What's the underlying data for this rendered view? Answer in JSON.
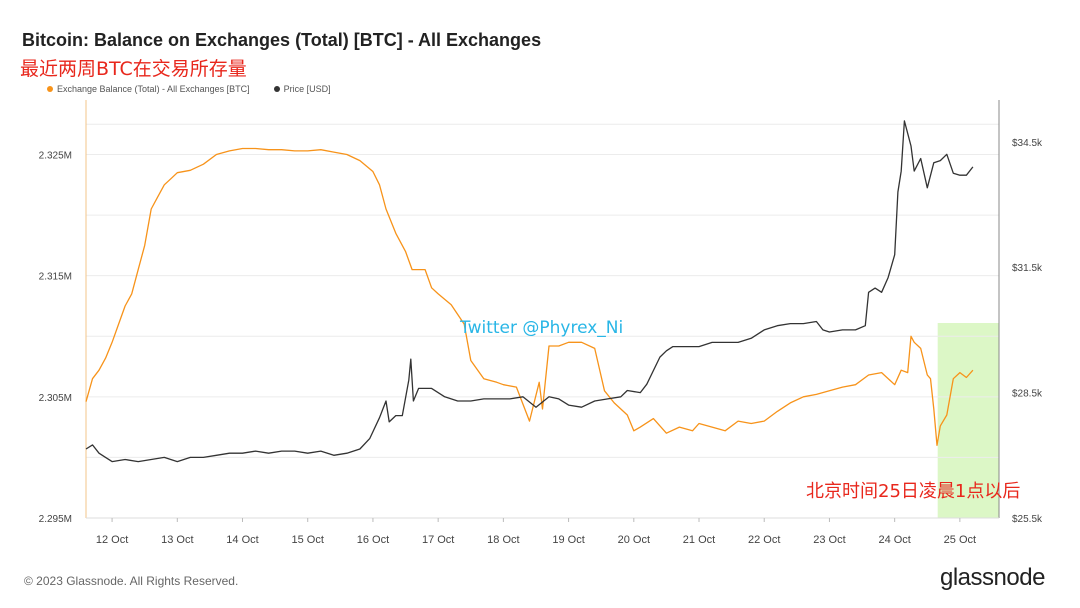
{
  "header": {
    "title": "Bitcoin: Balance on Exchanges (Total) [BTC] - All Exchanges",
    "subtitle": "最近两周BTC在交易所存量"
  },
  "legend": {
    "balance_label": "Exchange Balance (Total) - All Exchanges [BTC]",
    "price_label": "Price [USD]"
  },
  "colors": {
    "balance": "#f7931a",
    "price": "#333333",
    "highlight": "#dcf7c6",
    "annotation": "#e8271c",
    "watermark": "#29b6e6"
  },
  "annotations": {
    "watermark": "Twitter @Phyrex_Ni",
    "note": "北京时间25日凌晨1点以后"
  },
  "footer": {
    "copyright": "© 2023 Glassnode. All Rights Reserved.",
    "brand": "glassnode"
  },
  "chart_data": {
    "type": "line",
    "x_ticks": [
      "12 Oct",
      "13 Oct",
      "14 Oct",
      "15 Oct",
      "16 Oct",
      "17 Oct",
      "18 Oct",
      "19 Oct",
      "20 Oct",
      "21 Oct",
      "22 Oct",
      "23 Oct",
      "24 Oct",
      "25 Oct"
    ],
    "y_left": {
      "ticks": [
        "2.295M",
        "2.305M",
        "2.315M",
        "2.325M"
      ],
      "tick_values": [
        2.295,
        2.305,
        2.315,
        2.325
      ],
      "range": [
        2.295,
        2.3295
      ],
      "unit": "M BTC"
    },
    "y_right": {
      "ticks": [
        "$25.5k",
        "$28.5k",
        "$31.5k",
        "$34.5k"
      ],
      "tick_values": [
        25.5,
        28.5,
        31.5,
        34.5
      ],
      "range": [
        25.5,
        35.5
      ],
      "unit": "k USD"
    },
    "x_range": [
      11.6,
      25.6
    ],
    "highlight_range": [
      24.66,
      25.6
    ],
    "series": [
      {
        "name": "Exchange Balance (Total) - All Exchanges [BTC]",
        "axis": "left",
        "x": [
          11.6,
          11.7,
          11.8,
          11.9,
          12.0,
          12.1,
          12.2,
          12.3,
          12.4,
          12.5,
          12.6,
          12.7,
          12.8,
          12.9,
          13.0,
          13.2,
          13.4,
          13.6,
          13.8,
          14.0,
          14.2,
          14.4,
          14.6,
          14.8,
          15.0,
          15.2,
          15.4,
          15.6,
          15.8,
          16.0,
          16.1,
          16.2,
          16.35,
          16.5,
          16.6,
          16.8,
          16.9,
          17.0,
          17.2,
          17.4,
          17.5,
          17.7,
          17.9,
          18.0,
          18.2,
          18.4,
          18.55,
          18.6,
          18.7,
          18.85,
          19.0,
          19.2,
          19.4,
          19.55,
          19.7,
          19.9,
          20.0,
          20.1,
          20.3,
          20.5,
          20.7,
          20.9,
          21.0,
          21.2,
          21.4,
          21.6,
          21.8,
          22.0,
          22.2,
          22.4,
          22.6,
          22.8,
          23.0,
          23.2,
          23.4,
          23.6,
          23.8,
          24.0,
          24.1,
          24.2,
          24.25,
          24.3,
          24.4,
          24.5,
          24.55,
          24.6,
          24.65,
          24.7,
          24.8,
          24.9,
          25.0,
          25.1,
          25.2
        ],
        "values": [
          2.3046,
          2.3065,
          2.3072,
          2.3082,
          2.3095,
          2.311,
          2.3125,
          2.3135,
          2.3155,
          2.3175,
          2.3205,
          2.3215,
          2.3225,
          2.323,
          2.3235,
          2.3237,
          2.3242,
          2.325,
          2.3253,
          2.3255,
          2.3255,
          2.3254,
          2.3254,
          2.3253,
          2.3253,
          2.3254,
          2.3252,
          2.325,
          2.3245,
          2.3236,
          2.3225,
          2.3205,
          2.3185,
          2.317,
          2.3155,
          2.3155,
          2.314,
          2.3135,
          2.3126,
          2.311,
          2.308,
          2.3065,
          2.3062,
          2.306,
          2.3058,
          2.303,
          2.3062,
          2.304,
          2.3092,
          2.3092,
          2.3095,
          2.3095,
          2.309,
          2.3055,
          2.3045,
          2.3035,
          2.3022,
          2.3025,
          2.3032,
          2.302,
          2.3025,
          2.3022,
          2.3028,
          2.3025,
          2.3022,
          2.303,
          2.3028,
          2.303,
          2.3038,
          2.3045,
          2.305,
          2.3052,
          2.3055,
          2.3058,
          2.306,
          2.3068,
          2.307,
          2.306,
          2.3072,
          2.307,
          2.31,
          2.3095,
          2.309,
          2.3068,
          2.3065,
          2.304,
          2.301,
          2.3026,
          2.3035,
          2.3065,
          2.307,
          2.3066,
          2.3072
        ]
      },
      {
        "name": "Price [USD]",
        "axis": "right",
        "x": [
          11.6,
          11.7,
          11.8,
          11.9,
          12.0,
          12.2,
          12.4,
          12.6,
          12.8,
          13.0,
          13.2,
          13.4,
          13.6,
          13.8,
          14.0,
          14.2,
          14.4,
          14.6,
          14.8,
          15.0,
          15.2,
          15.4,
          15.6,
          15.8,
          15.95,
          16.1,
          16.2,
          16.25,
          16.35,
          16.45,
          16.55,
          16.58,
          16.62,
          16.7,
          16.9,
          17.1,
          17.3,
          17.5,
          17.7,
          17.9,
          18.1,
          18.3,
          18.5,
          18.7,
          18.85,
          19.0,
          19.2,
          19.4,
          19.6,
          19.8,
          19.9,
          20.1,
          20.2,
          20.4,
          20.5,
          20.6,
          20.8,
          21.0,
          21.2,
          21.4,
          21.6,
          21.8,
          22.0,
          22.2,
          22.4,
          22.6,
          22.8,
          22.9,
          23.0,
          23.2,
          23.4,
          23.55,
          23.6,
          23.7,
          23.8,
          23.9,
          24.0,
          24.05,
          24.1,
          24.15,
          24.2,
          24.25,
          24.3,
          24.4,
          24.5,
          24.6,
          24.7,
          24.8,
          24.9,
          25.0,
          25.1,
          25.2
        ],
        "values": [
          27.15,
          27.25,
          27.05,
          26.95,
          26.85,
          26.9,
          26.85,
          26.9,
          26.95,
          26.85,
          26.95,
          26.95,
          27.0,
          27.05,
          27.05,
          27.1,
          27.05,
          27.1,
          27.1,
          27.05,
          27.1,
          27.0,
          27.05,
          27.15,
          27.4,
          27.9,
          28.3,
          27.8,
          27.95,
          27.95,
          28.8,
          29.3,
          28.3,
          28.6,
          28.6,
          28.4,
          28.3,
          28.3,
          28.35,
          28.35,
          28.35,
          28.4,
          28.15,
          28.4,
          28.35,
          28.2,
          28.15,
          28.3,
          28.35,
          28.4,
          28.55,
          28.5,
          28.7,
          29.35,
          29.5,
          29.6,
          29.6,
          29.6,
          29.7,
          29.7,
          29.7,
          29.8,
          30.0,
          30.1,
          30.15,
          30.15,
          30.2,
          30.0,
          29.95,
          30.0,
          30.0,
          30.1,
          30.9,
          31.0,
          30.9,
          31.25,
          31.8,
          33.3,
          33.8,
          35.0,
          34.7,
          34.4,
          33.8,
          34.1,
          33.4,
          34.0,
          34.05,
          34.2,
          33.75,
          33.7,
          33.7,
          33.9
        ]
      }
    ]
  }
}
